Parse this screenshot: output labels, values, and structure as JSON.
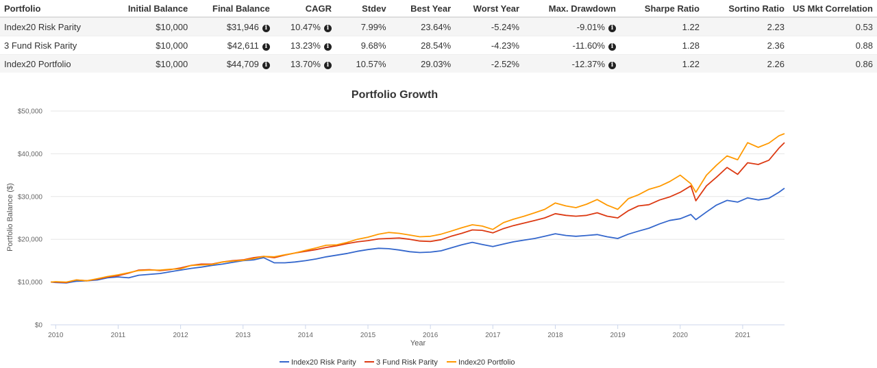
{
  "table": {
    "headers": [
      "Portfolio",
      "Initial Balance",
      "Final Balance",
      "CAGR",
      "Stdev",
      "Best Year",
      "Worst Year",
      "Max. Drawdown",
      "Sharpe Ratio",
      "Sortino Ratio",
      "US Mkt Correlation"
    ],
    "rows": [
      {
        "portfolio": "Index20 Risk Parity",
        "initial": "$10,000",
        "final": "$31,946",
        "cagr": "10.47%",
        "stdev": "7.99%",
        "best": "23.64%",
        "worst": "-5.24%",
        "drawdown": "-9.01%",
        "sharpe": "1.22",
        "sortino": "2.23",
        "corr": "0.53"
      },
      {
        "portfolio": "3 Fund Risk Parity",
        "initial": "$10,000",
        "final": "$42,611",
        "cagr": "13.23%",
        "stdev": "9.68%",
        "best": "28.54%",
        "worst": "-4.23%",
        "drawdown": "-11.60%",
        "sharpe": "1.28",
        "sortino": "2.36",
        "corr": "0.88"
      },
      {
        "portfolio": "Index20 Portfolio",
        "initial": "$10,000",
        "final": "$44,709",
        "cagr": "13.70%",
        "stdev": "10.57%",
        "best": "29.03%",
        "worst": "-2.52%",
        "drawdown": "-12.37%",
        "sharpe": "1.22",
        "sortino": "2.26",
        "corr": "0.86"
      }
    ],
    "info_icon": "info-circle-icon"
  },
  "chart_data": {
    "type": "line",
    "title": "Portfolio Growth",
    "xlabel": "Year",
    "ylabel": "Portfolio Balance ($)",
    "xlim": [
      2009.92,
      2021.67
    ],
    "ylim": [
      0,
      50000
    ],
    "x_ticks": [
      "2010",
      "2011",
      "2012",
      "2013",
      "2014",
      "2015",
      "2016",
      "2017",
      "2018",
      "2019",
      "2020",
      "2021"
    ],
    "y_ticks": [
      "$0",
      "$10,000",
      "$20,000",
      "$30,000",
      "$40,000",
      "$50,000"
    ],
    "grid": true,
    "legend_position": "bottom",
    "series": [
      {
        "name": "Index20 Risk Parity",
        "color": "#3366cc",
        "points": [
          [
            2009.92,
            10000
          ],
          [
            2010.0,
            9900
          ],
          [
            2010.17,
            9800
          ],
          [
            2010.33,
            10200
          ],
          [
            2010.5,
            10300
          ],
          [
            2010.67,
            10500
          ],
          [
            2010.83,
            11000
          ],
          [
            2011.0,
            11200
          ],
          [
            2011.17,
            11000
          ],
          [
            2011.33,
            11600
          ],
          [
            2011.5,
            11800
          ],
          [
            2011.67,
            12000
          ],
          [
            2011.83,
            12400
          ],
          [
            2012.0,
            12800
          ],
          [
            2012.17,
            13200
          ],
          [
            2012.33,
            13500
          ],
          [
            2012.5,
            13900
          ],
          [
            2012.67,
            14200
          ],
          [
            2012.83,
            14600
          ],
          [
            2013.0,
            15000
          ],
          [
            2013.17,
            15200
          ],
          [
            2013.33,
            15700
          ],
          [
            2013.5,
            14500
          ],
          [
            2013.67,
            14500
          ],
          [
            2013.83,
            14700
          ],
          [
            2014.0,
            15000
          ],
          [
            2014.17,
            15400
          ],
          [
            2014.33,
            15900
          ],
          [
            2014.5,
            16300
          ],
          [
            2014.67,
            16700
          ],
          [
            2014.83,
            17200
          ],
          [
            2015.0,
            17600
          ],
          [
            2015.17,
            17900
          ],
          [
            2015.33,
            17800
          ],
          [
            2015.5,
            17500
          ],
          [
            2015.67,
            17100
          ],
          [
            2015.83,
            16900
          ],
          [
            2016.0,
            17000
          ],
          [
            2016.17,
            17300
          ],
          [
            2016.33,
            18000
          ],
          [
            2016.5,
            18700
          ],
          [
            2016.67,
            19300
          ],
          [
            2016.83,
            18800
          ],
          [
            2017.0,
            18300
          ],
          [
            2017.17,
            18900
          ],
          [
            2017.33,
            19400
          ],
          [
            2017.5,
            19800
          ],
          [
            2017.67,
            20200
          ],
          [
            2017.83,
            20700
          ],
          [
            2018.0,
            21300
          ],
          [
            2018.17,
            20900
          ],
          [
            2018.33,
            20700
          ],
          [
            2018.5,
            20900
          ],
          [
            2018.67,
            21100
          ],
          [
            2018.83,
            20600
          ],
          [
            2019.0,
            20200
          ],
          [
            2019.17,
            21200
          ],
          [
            2019.33,
            21900
          ],
          [
            2019.5,
            22600
          ],
          [
            2019.67,
            23600
          ],
          [
            2019.83,
            24400
          ],
          [
            2020.0,
            24800
          ],
          [
            2020.17,
            25800
          ],
          [
            2020.25,
            24600
          ],
          [
            2020.42,
            26400
          ],
          [
            2020.58,
            28000
          ],
          [
            2020.75,
            29100
          ],
          [
            2020.92,
            28700
          ],
          [
            2021.08,
            29700
          ],
          [
            2021.25,
            29200
          ],
          [
            2021.42,
            29600
          ],
          [
            2021.58,
            31000
          ],
          [
            2021.67,
            31946
          ]
        ]
      },
      {
        "name": "3 Fund Risk Parity",
        "color": "#dc3912",
        "points": [
          [
            2009.92,
            10000
          ],
          [
            2010.0,
            10000
          ],
          [
            2010.17,
            9900
          ],
          [
            2010.33,
            10500
          ],
          [
            2010.5,
            10300
          ],
          [
            2010.67,
            10700
          ],
          [
            2010.83,
            11200
          ],
          [
            2011.0,
            11500
          ],
          [
            2011.17,
            12100
          ],
          [
            2011.33,
            12800
          ],
          [
            2011.5,
            12900
          ],
          [
            2011.67,
            12700
          ],
          [
            2011.83,
            12900
          ],
          [
            2012.0,
            13300
          ],
          [
            2012.17,
            13900
          ],
          [
            2012.33,
            14200
          ],
          [
            2012.5,
            14200
          ],
          [
            2012.67,
            14700
          ],
          [
            2012.83,
            15000
          ],
          [
            2013.0,
            15200
          ],
          [
            2013.17,
            15700
          ],
          [
            2013.33,
            16000
          ],
          [
            2013.5,
            15700
          ],
          [
            2013.67,
            16300
          ],
          [
            2013.83,
            16800
          ],
          [
            2014.0,
            17200
          ],
          [
            2014.17,
            17600
          ],
          [
            2014.33,
            18100
          ],
          [
            2014.5,
            18500
          ],
          [
            2014.67,
            19000
          ],
          [
            2014.83,
            19400
          ],
          [
            2015.0,
            19700
          ],
          [
            2015.17,
            20100
          ],
          [
            2015.33,
            20200
          ],
          [
            2015.5,
            20300
          ],
          [
            2015.67,
            20000
          ],
          [
            2015.83,
            19600
          ],
          [
            2016.0,
            19500
          ],
          [
            2016.17,
            19900
          ],
          [
            2016.33,
            20700
          ],
          [
            2016.5,
            21400
          ],
          [
            2016.67,
            22200
          ],
          [
            2016.83,
            22100
          ],
          [
            2017.0,
            21500
          ],
          [
            2017.17,
            22500
          ],
          [
            2017.33,
            23200
          ],
          [
            2017.5,
            23800
          ],
          [
            2017.67,
            24400
          ],
          [
            2017.83,
            25000
          ],
          [
            2018.0,
            26000
          ],
          [
            2018.17,
            25600
          ],
          [
            2018.33,
            25400
          ],
          [
            2018.5,
            25600
          ],
          [
            2018.67,
            26200
          ],
          [
            2018.83,
            25400
          ],
          [
            2019.0,
            25000
          ],
          [
            2019.17,
            26700
          ],
          [
            2019.33,
            27800
          ],
          [
            2019.5,
            28100
          ],
          [
            2019.67,
            29200
          ],
          [
            2019.83,
            29900
          ],
          [
            2020.0,
            31000
          ],
          [
            2020.17,
            32500
          ],
          [
            2020.25,
            29000
          ],
          [
            2020.42,
            32500
          ],
          [
            2020.58,
            34500
          ],
          [
            2020.75,
            36800
          ],
          [
            2020.92,
            35200
          ],
          [
            2021.08,
            37900
          ],
          [
            2021.25,
            37500
          ],
          [
            2021.42,
            38500
          ],
          [
            2021.58,
            41300
          ],
          [
            2021.67,
            42611
          ]
        ]
      },
      {
        "name": "Index20 Portfolio",
        "color": "#ff9900",
        "points": [
          [
            2009.92,
            10000
          ],
          [
            2010.0,
            10100
          ],
          [
            2010.17,
            10000
          ],
          [
            2010.33,
            10500
          ],
          [
            2010.5,
            10300
          ],
          [
            2010.67,
            10800
          ],
          [
            2010.83,
            11300
          ],
          [
            2011.0,
            11700
          ],
          [
            2011.17,
            12200
          ],
          [
            2011.33,
            12700
          ],
          [
            2011.5,
            12800
          ],
          [
            2011.67,
            12800
          ],
          [
            2011.83,
            13000
          ],
          [
            2012.0,
            13100
          ],
          [
            2012.17,
            13900
          ],
          [
            2012.33,
            14000
          ],
          [
            2012.5,
            14100
          ],
          [
            2012.67,
            14700
          ],
          [
            2012.83,
            14900
          ],
          [
            2013.0,
            15100
          ],
          [
            2013.17,
            15500
          ],
          [
            2013.33,
            16000
          ],
          [
            2013.5,
            15900
          ],
          [
            2013.67,
            16400
          ],
          [
            2013.83,
            16800
          ],
          [
            2014.0,
            17400
          ],
          [
            2014.17,
            18000
          ],
          [
            2014.33,
            18600
          ],
          [
            2014.5,
            18700
          ],
          [
            2014.67,
            19300
          ],
          [
            2014.83,
            20000
          ],
          [
            2015.0,
            20500
          ],
          [
            2015.17,
            21200
          ],
          [
            2015.33,
            21600
          ],
          [
            2015.5,
            21400
          ],
          [
            2015.67,
            21000
          ],
          [
            2015.83,
            20600
          ],
          [
            2016.0,
            20700
          ],
          [
            2016.17,
            21200
          ],
          [
            2016.33,
            21900
          ],
          [
            2016.5,
            22700
          ],
          [
            2016.67,
            23400
          ],
          [
            2016.83,
            23100
          ],
          [
            2017.0,
            22300
          ],
          [
            2017.17,
            23900
          ],
          [
            2017.33,
            24700
          ],
          [
            2017.5,
            25400
          ],
          [
            2017.67,
            26200
          ],
          [
            2017.83,
            27000
          ],
          [
            2018.0,
            28500
          ],
          [
            2018.17,
            27800
          ],
          [
            2018.33,
            27400
          ],
          [
            2018.5,
            28200
          ],
          [
            2018.67,
            29300
          ],
          [
            2018.83,
            28000
          ],
          [
            2019.0,
            27000
          ],
          [
            2019.17,
            29500
          ],
          [
            2019.33,
            30400
          ],
          [
            2019.5,
            31700
          ],
          [
            2019.67,
            32400
          ],
          [
            2019.83,
            33500
          ],
          [
            2020.0,
            35000
          ],
          [
            2020.17,
            33000
          ],
          [
            2020.25,
            31000
          ],
          [
            2020.42,
            35000
          ],
          [
            2020.58,
            37300
          ],
          [
            2020.75,
            39500
          ],
          [
            2020.92,
            38600
          ],
          [
            2021.08,
            42600
          ],
          [
            2021.25,
            41500
          ],
          [
            2021.42,
            42500
          ],
          [
            2021.58,
            44200
          ],
          [
            2021.67,
            44709
          ]
        ]
      }
    ]
  }
}
